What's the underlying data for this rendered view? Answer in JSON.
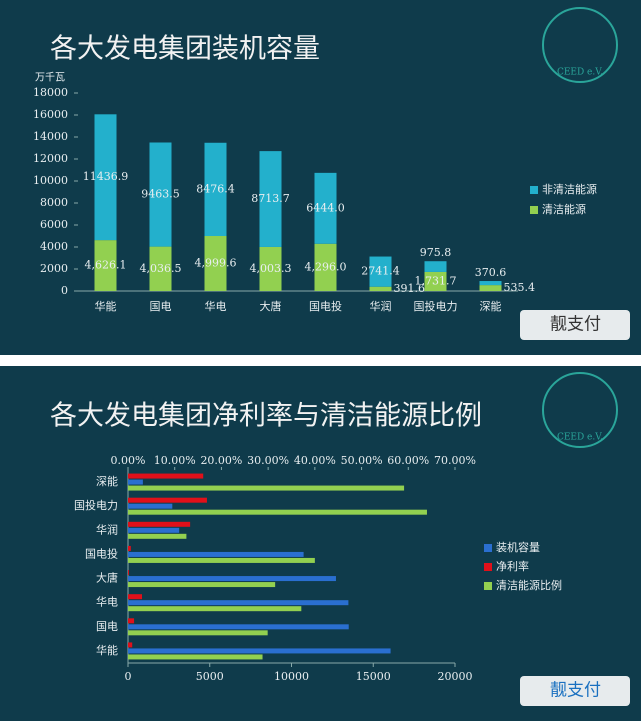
{
  "chart_data": [
    {
      "type": "stacked_bar",
      "title": "各大发电集团装机容量",
      "y_label": "万千瓦",
      "categories": [
        "华能",
        "国电",
        "华电",
        "大唐",
        "国电投",
        "华润",
        "国投电力",
        "深能"
      ],
      "series": [
        {
          "name": "清洁能源",
          "color": "#92d050",
          "values": [
            4626.1,
            4036.5,
            4999.6,
            4003.3,
            4296.0,
            391.6,
            1731.7,
            535.4
          ],
          "value_labels": [
            "4,626.1",
            "4,036.5",
            "4,999.6",
            "4,003.3",
            "4,296.0",
            "391.6",
            "1,731.7",
            "535.4"
          ]
        },
        {
          "name": "非清洁能源",
          "color": "#23b0cc",
          "values": [
            11436.9,
            9463.5,
            8476.4,
            8713.7,
            6444.0,
            2741.4,
            975.8,
            370.6
          ],
          "value_labels": [
            "11436.9",
            "9463.5",
            "8476.4",
            "8713.7",
            "6444.0",
            "2741.4",
            "975.8",
            "370.6"
          ]
        }
      ],
      "legend_order": [
        1,
        0
      ],
      "ylim": [
        0,
        18000
      ],
      "yticks": [
        0,
        2000,
        4000,
        6000,
        8000,
        10000,
        12000,
        14000,
        16000,
        18000
      ]
    },
    {
      "type": "hbar",
      "title": "各大发电集团净利率与清洁能源比例",
      "categories": [
        "华能",
        "国电",
        "华电",
        "大唐",
        "国电投",
        "华润",
        "国投电力",
        "深能"
      ],
      "series": [
        {
          "name": "装机容量",
          "color": "#2a6fd0",
          "axis": "x",
          "values": [
            16060,
            13500,
            13480,
            12720,
            10740,
            3130,
            2710,
            910
          ]
        },
        {
          "name": "净利率",
          "color": "#e0101a",
          "axis": "x2",
          "values": [
            0.9,
            1.3,
            3.0,
            0.2,
            0.6,
            13.3,
            16.9,
            16.1
          ]
        },
        {
          "name": "清洁能源比例",
          "color": "#92d050",
          "axis": "x2",
          "values": [
            28.8,
            29.9,
            37.1,
            31.5,
            40.0,
            12.5,
            64.0,
            59.1
          ]
        }
      ],
      "xlim": [
        0,
        20000
      ],
      "xticks": [
        0,
        5000,
        10000,
        15000,
        20000
      ],
      "x2lim": [
        0,
        70
      ],
      "x2ticks": [
        {
          "value": 0,
          "label": "0.00%"
        },
        {
          "value": 10,
          "label": "10.00%"
        },
        {
          "value": 20,
          "label": "20.00%"
        },
        {
          "value": 30,
          "label": "30.00%"
        },
        {
          "value": 40,
          "label": "40.00%"
        },
        {
          "value": 50,
          "label": "50.00%"
        },
        {
          "value": 60,
          "label": "60.00%"
        },
        {
          "value": 70,
          "label": "70.00%"
        }
      ]
    }
  ],
  "panels": [
    {
      "logo": "CEED e.V.",
      "watermark": "靓支付"
    },
    {
      "logo": "CEED e.V.",
      "watermark": "靓支付"
    }
  ]
}
